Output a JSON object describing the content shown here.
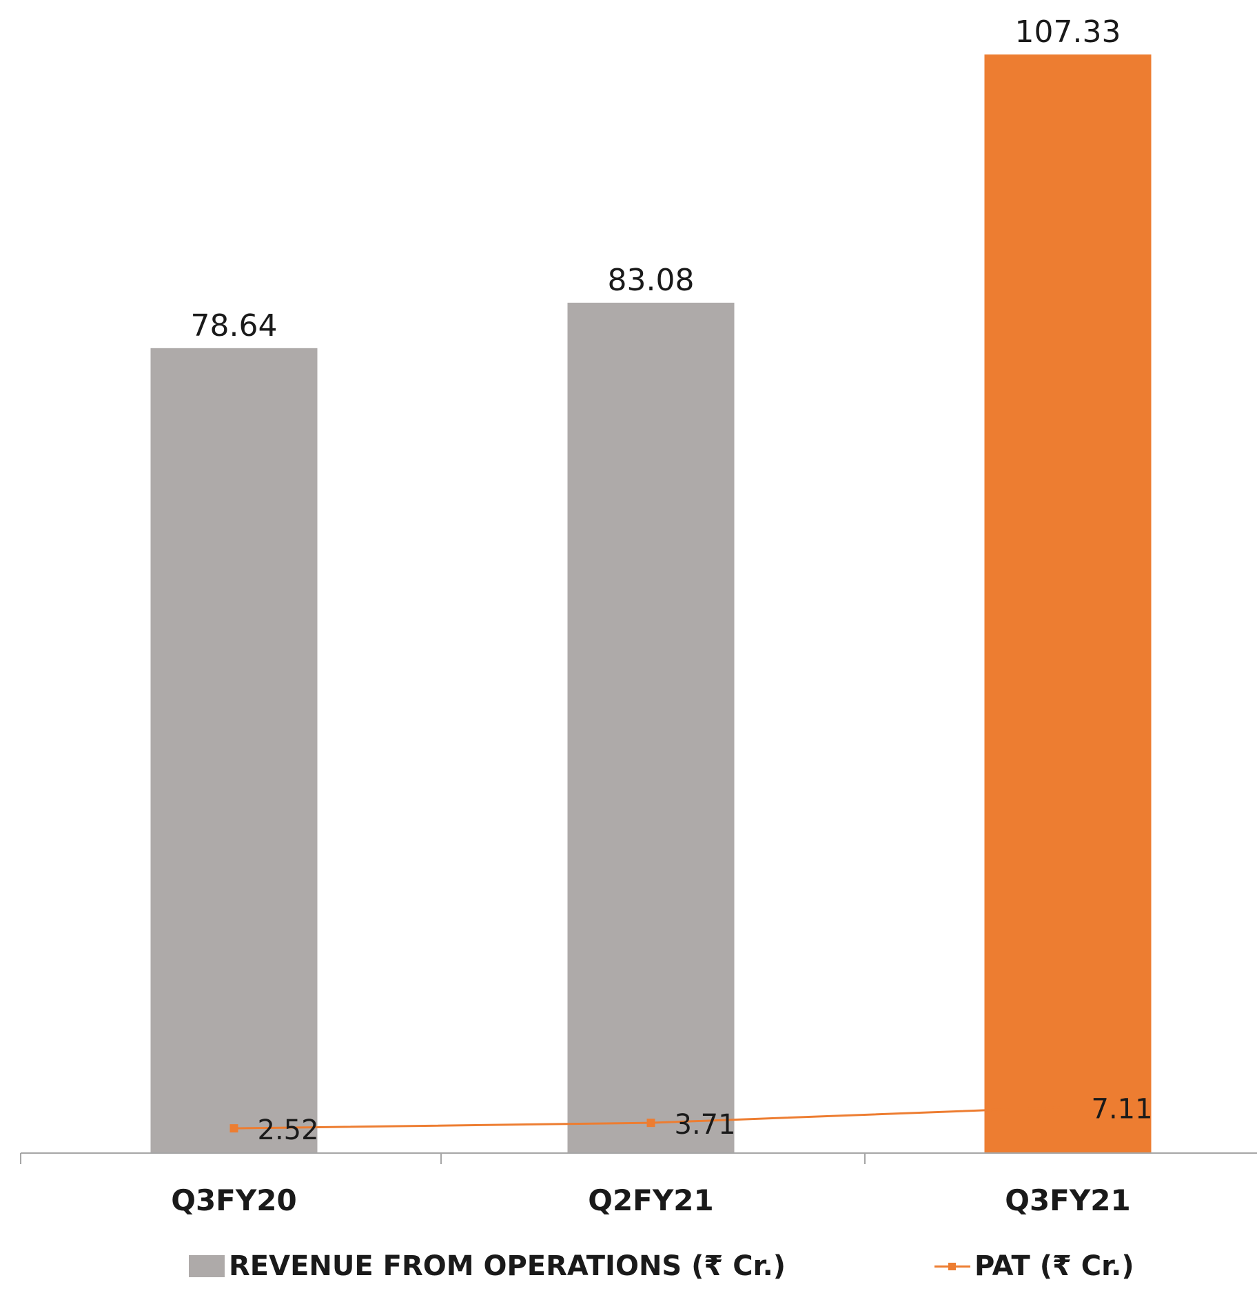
{
  "chart_data": {
    "type": "bar",
    "categories": [
      "Q3FY20",
      "Q2FY21",
      "Q3FY21"
    ],
    "series": [
      {
        "name": "REVENUE FROM OPERATIONS (₹ Cr.)",
        "kind": "bar",
        "values": [
          78.64,
          83.08,
          107.33
        ],
        "labels": [
          "78.64",
          "83.08",
          "107.33"
        ],
        "colors": [
          "#aeaaa9",
          "#aeaaa9",
          "#ed7d31"
        ]
      },
      {
        "name": "PAT  (₹ Cr.)",
        "kind": "line",
        "values": [
          2.52,
          3.71,
          7.11
        ],
        "labels": [
          "2.52",
          "3.71",
          "7.11"
        ],
        "color": "#ed7d31"
      }
    ],
    "ylim": [
      0,
      107.33
    ],
    "grid": false,
    "legend_position": "bottom"
  }
}
